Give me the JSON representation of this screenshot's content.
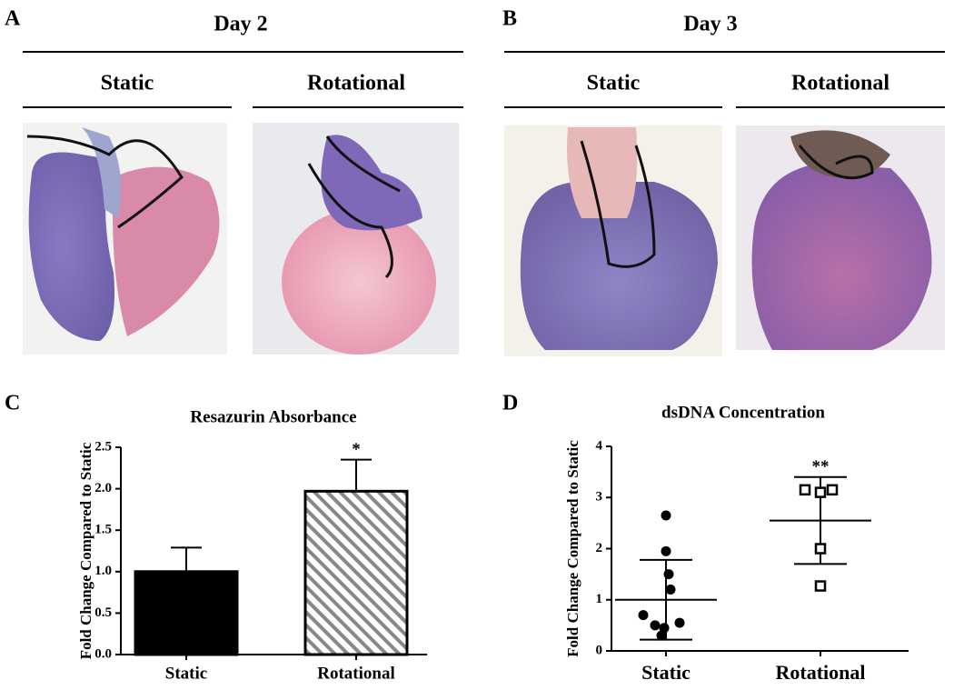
{
  "panels": [
    {
      "letter": "A",
      "title": "Day 2",
      "columns": [
        "Static",
        "Rotational"
      ]
    },
    {
      "letter": "B",
      "title": "Day 3",
      "columns": [
        "Static",
        "Rotational"
      ]
    }
  ],
  "chart_data": [
    {
      "type": "bar",
      "letter": "C",
      "title": "Resazurin Absorbance",
      "y_label": "Fold Change Compared to Static",
      "categories": [
        "Static",
        "Rotational"
      ],
      "values": [
        1.0,
        1.97
      ],
      "errors": [
        0.29,
        0.38
      ],
      "fills": [
        "solid",
        "hatched"
      ],
      "color": "#000000",
      "annotations": [
        null,
        "*"
      ],
      "ylim": [
        0,
        2.5
      ],
      "yticks": [
        {
          "value": 0,
          "label": "0.0"
        },
        0.5,
        {
          "value": 1,
          "label": "1.0"
        },
        1.5,
        {
          "value": 2,
          "label": "2.0"
        },
        2.5
      ]
    },
    {
      "type": "scatter",
      "letter": "D",
      "title": "dsDNA Concentration",
      "y_label": "Fold Change Compared to Static",
      "categories": [
        "Static",
        "Rotational"
      ],
      "points": [
        [
          2.65,
          1.95,
          1.5,
          1.2,
          0.7,
          0.55,
          0.5,
          0.45,
          0.3
        ],
        [
          3.15,
          3.1,
          3.15,
          2.0,
          1.27
        ]
      ],
      "markers": [
        "circle",
        "square"
      ],
      "color": "#000000",
      "means": [
        1.0,
        2.55
      ],
      "sd": [
        0.78,
        0.85
      ],
      "annotations": [
        null,
        "**"
      ],
      "ylim": [
        0,
        4
      ],
      "yticks": [
        0,
        1,
        2,
        3,
        4
      ]
    }
  ]
}
